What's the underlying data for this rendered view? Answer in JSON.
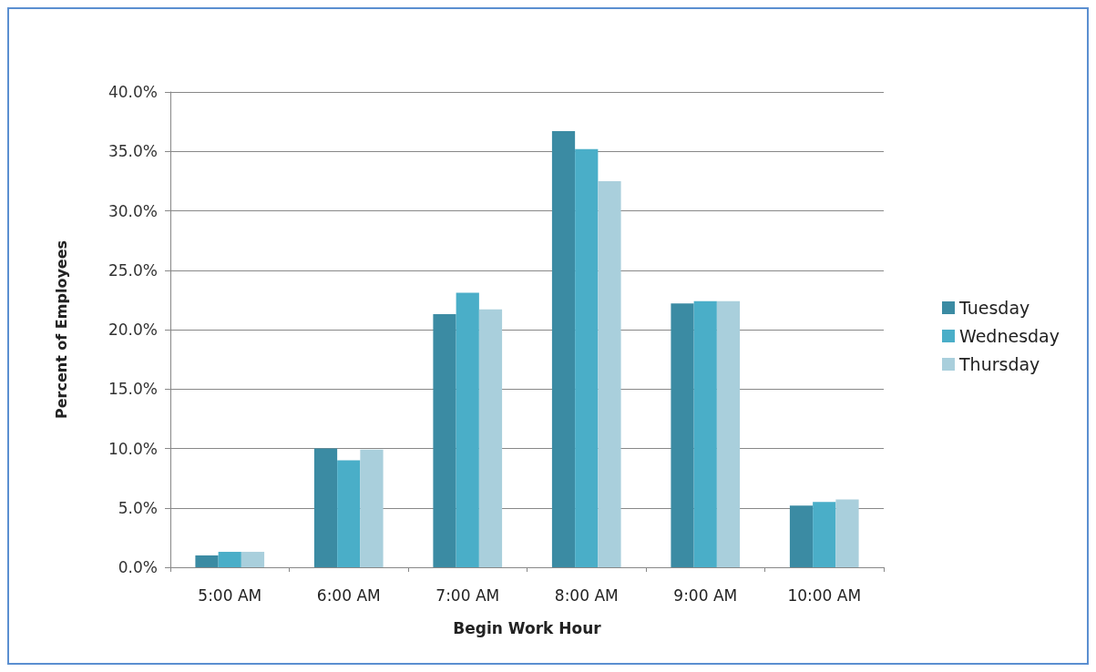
{
  "chart_data": {
    "type": "bar",
    "xlabel": "Begin Work Hour",
    "ylabel": "Percent of Employees",
    "categories": [
      "5:00 AM",
      "6:00 AM",
      "7:00 AM",
      "8:00 AM",
      "9:00 AM",
      "10:00 AM"
    ],
    "series": [
      {
        "name": "Tuesday",
        "color": "#3b8ba3",
        "values": [
          1.0,
          10.0,
          21.3,
          36.7,
          22.2,
          5.2
        ]
      },
      {
        "name": "Wednesday",
        "color": "#4aaec8",
        "values": [
          1.3,
          9.0,
          23.1,
          35.2,
          22.4,
          5.5
        ]
      },
      {
        "name": "Thursday",
        "color": "#a9cfdc",
        "values": [
          1.3,
          9.9,
          21.7,
          32.5,
          22.4,
          5.7
        ]
      }
    ],
    "ylim": [
      0,
      40
    ],
    "yticks": [
      {
        "value": 0,
        "label": "0.0%"
      },
      {
        "value": 5,
        "label": "5.0%"
      },
      {
        "value": 10,
        "label": "10.0%"
      },
      {
        "value": 15,
        "label": "15.0%"
      },
      {
        "value": 20,
        "label": "20.0%"
      },
      {
        "value": 25,
        "label": "25.0%"
      },
      {
        "value": 30,
        "label": "30.0%"
      },
      {
        "value": 35,
        "label": "35.0%"
      },
      {
        "value": 40,
        "label": "40.0%"
      }
    ],
    "grid": "y",
    "legend": "right"
  }
}
